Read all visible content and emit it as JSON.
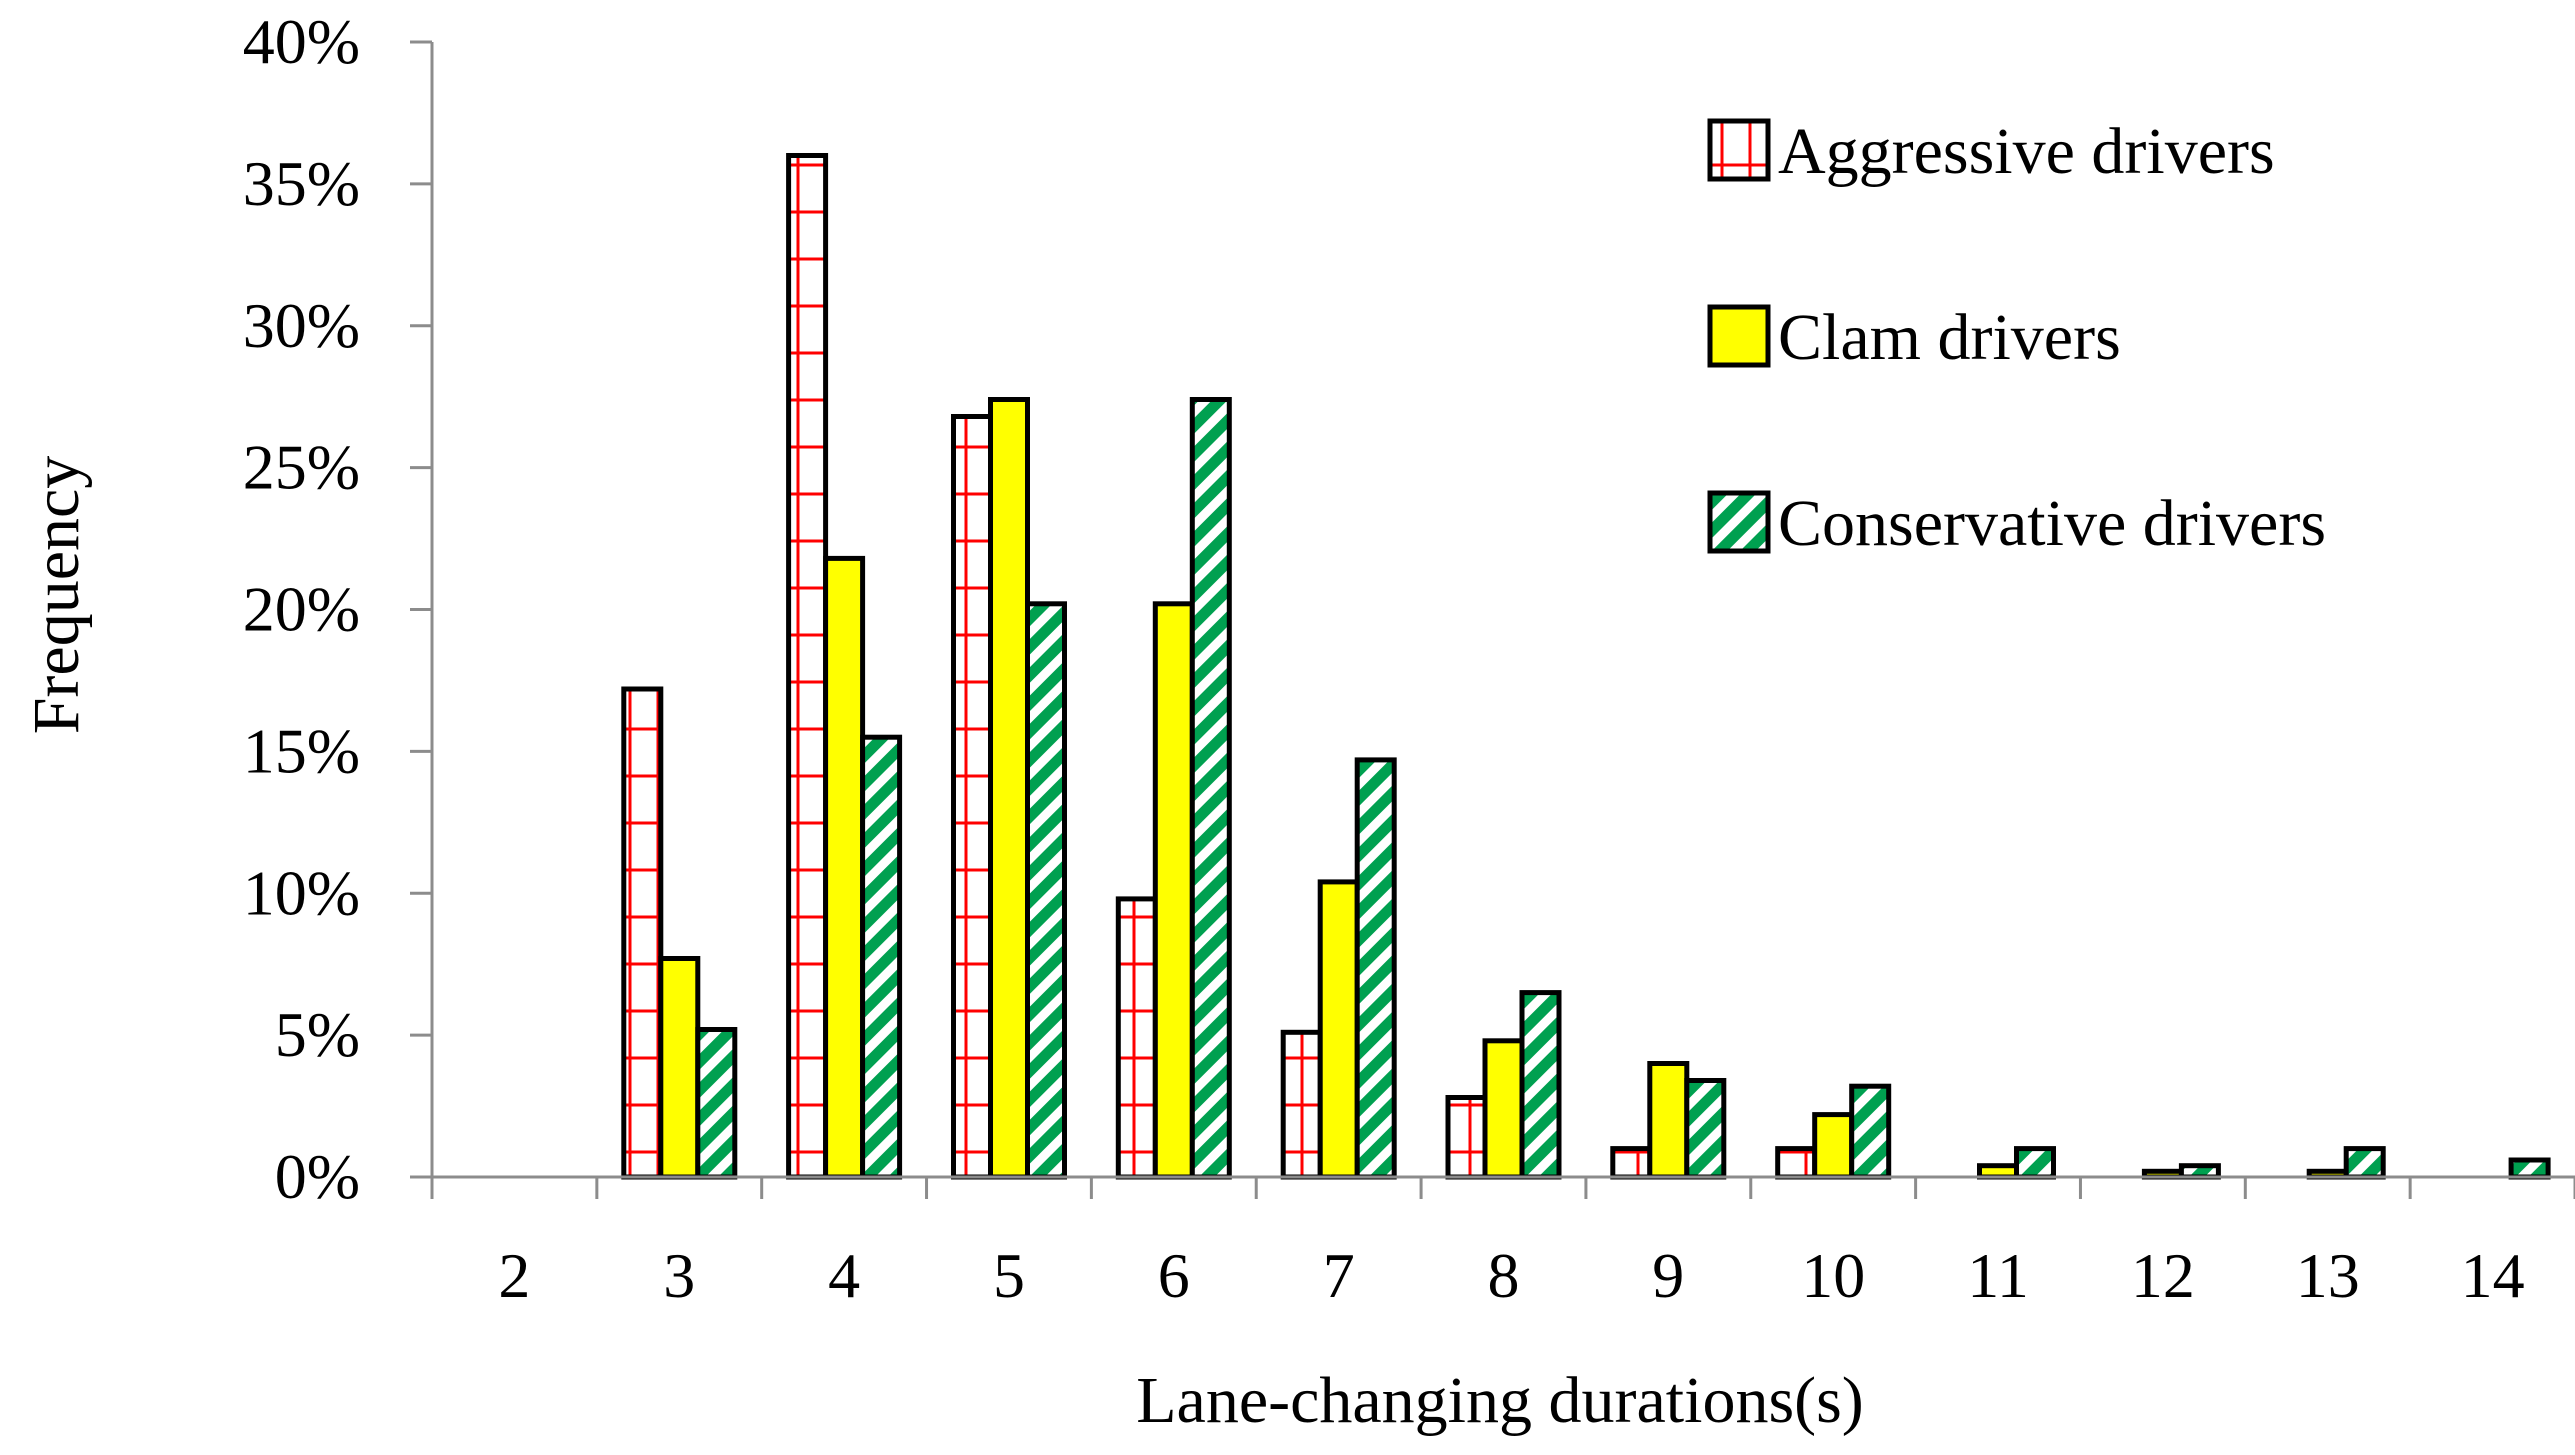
{
  "chart_data": {
    "type": "bar",
    "title": "",
    "xlabel": "Lane-changing durations(s)",
    "ylabel": "Frequency",
    "categories": [
      "2",
      "3",
      "4",
      "5",
      "6",
      "7",
      "8",
      "9",
      "10",
      "11",
      "12",
      "13",
      "14"
    ],
    "ylim": [
      0,
      40
    ],
    "yticks": [
      0,
      5,
      10,
      15,
      20,
      25,
      30,
      35,
      40
    ],
    "ytick_labels": [
      "0%",
      "5%",
      "10%",
      "15%",
      "20%",
      "25%",
      "30%",
      "35%",
      "40%"
    ],
    "grid": false,
    "legend_position": "top-right",
    "series": [
      {
        "name": "Aggressive drivers",
        "pattern": "red-grid",
        "fill_color": "#ffffff",
        "pattern_color": "#ff0000",
        "values": [
          0,
          17.2,
          36.0,
          26.8,
          9.8,
          5.1,
          2.8,
          1.0,
          1.0,
          0,
          0,
          0,
          0
        ]
      },
      {
        "name": "Clam drivers",
        "pattern": "solid",
        "fill_color": "#ffff00",
        "pattern_color": "#ffff00",
        "values": [
          0,
          7.7,
          21.8,
          27.4,
          20.2,
          10.4,
          4.8,
          4.0,
          2.2,
          0.4,
          0.2,
          0.2,
          0
        ]
      },
      {
        "name": "Conservative drivers",
        "pattern": "green-diagonal",
        "fill_color": "#ffffff",
        "pattern_color": "#00a050",
        "values": [
          0,
          5.2,
          15.5,
          20.2,
          27.4,
          14.7,
          6.5,
          3.4,
          3.2,
          1.0,
          0.4,
          1.0,
          0.6
        ]
      }
    ]
  }
}
